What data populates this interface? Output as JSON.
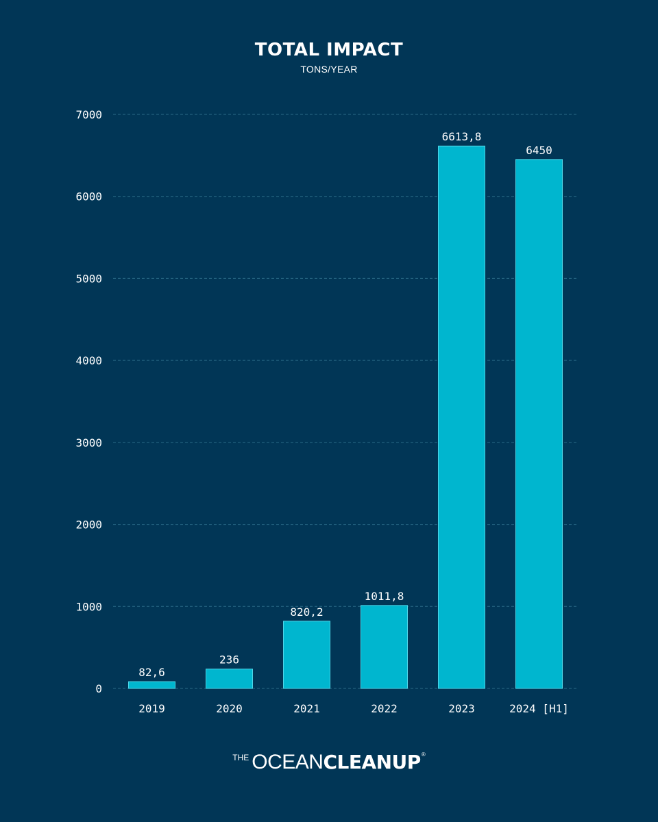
{
  "chart_data": {
    "type": "bar",
    "title": "TOTAL IMPACT",
    "subtitle": "TONS/YEAR",
    "categories": [
      "2019",
      "2020",
      "2021",
      "2022",
      "2023",
      "2024 [H1]"
    ],
    "values": [
      82.6,
      236,
      820.2,
      1011.8,
      6613.8,
      6450
    ],
    "value_labels": [
      "82,6",
      "236",
      "820,2",
      "1011,8",
      "6613,8",
      "6450"
    ],
    "ylim": [
      0,
      7000
    ],
    "yticks": [
      0,
      1000,
      2000,
      3000,
      4000,
      5000,
      6000,
      7000
    ],
    "grid": true,
    "colors": {
      "background": "#013656",
      "bar": "#00b6cf",
      "bar_edge": "#4fd6e8",
      "grid": "#2a6a86",
      "text": "#ffffff"
    }
  },
  "logo": {
    "the": "THE",
    "ocean": "OCEAN",
    "cleanup": "CLEANUP",
    "reg": "®"
  }
}
